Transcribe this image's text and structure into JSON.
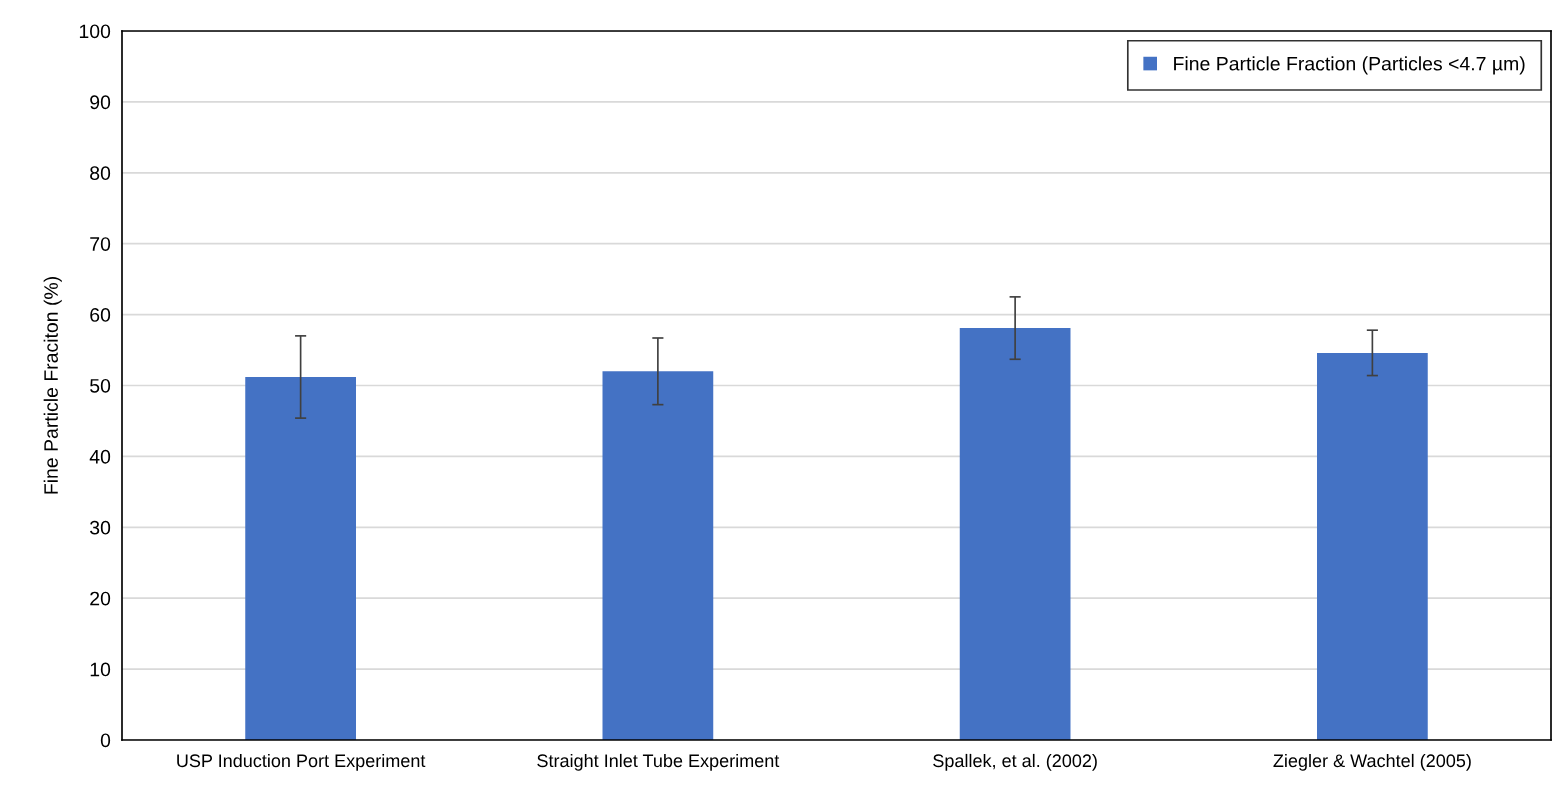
{
  "chart_data": {
    "type": "bar",
    "ylabel": "Fine Particle Fraciton (%)",
    "categories": [
      "USP Induction Port Experiment",
      "Straight Inlet Tube Experiment",
      "Spallek, et al. (2002)",
      "Ziegler & Wachtel (2005)"
    ],
    "series": [
      {
        "name": "Fine Particle Fraction (Particles <4.7 µm)",
        "color": "#4472c4",
        "values": [
          51.2,
          52.0,
          58.1,
          54.6
        ],
        "errors": [
          5.8,
          4.7,
          4.4,
          3.2
        ]
      }
    ],
    "ylim": [
      0,
      100
    ],
    "yticks": [
      0,
      10,
      20,
      30,
      40,
      50,
      60,
      70,
      80,
      90,
      100
    ],
    "grid": "y",
    "legend": "top right"
  }
}
